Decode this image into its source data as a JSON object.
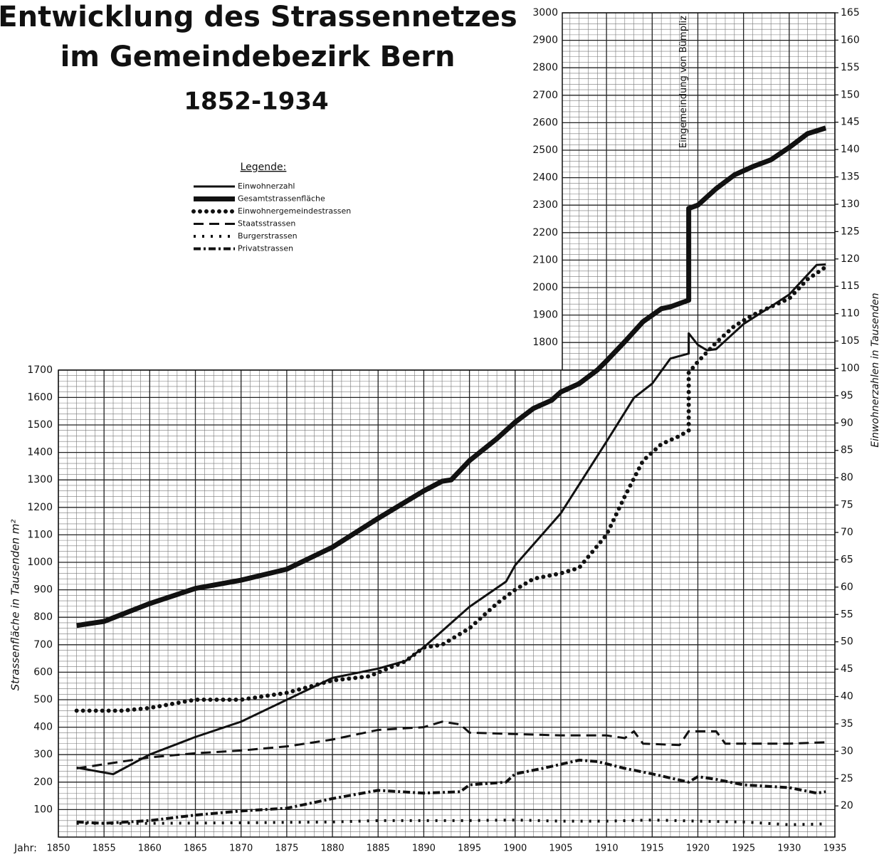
{
  "chart_data": {
    "type": "line",
    "title": [
      "Entwicklung des Strassennetzes",
      "im Gemeindebezirk Bern",
      "1852-1934"
    ],
    "legend_title": "Legende:",
    "x_label": "Jahr:",
    "y_label": "Strassenfläche in Tausenden m²",
    "y2_label": "Einwohnerzahlen in Tausenden",
    "annotation": "Eingemeindung von Bümpliz",
    "annotation_x": 1919,
    "xlim": [
      1850,
      1935
    ],
    "xticks": [
      1850,
      1855,
      1860,
      1865,
      1870,
      1875,
      1880,
      1885,
      1890,
      1895,
      1900,
      1905,
      1910,
      1915,
      1920,
      1925,
      1930,
      1935
    ],
    "ylim": [
      0,
      3000
    ],
    "yticks": [
      100,
      200,
      300,
      400,
      500,
      600,
      700,
      800,
      900,
      1000,
      1100,
      1200,
      1300,
      1400,
      1500,
      1600,
      1700,
      1800,
      1900,
      2000,
      2100,
      2200,
      2300,
      2400,
      2500,
      2600,
      2700,
      2800,
      2900,
      3000
    ],
    "y2lim": [
      14.3,
      165
    ],
    "y2ticks": [
      20,
      25,
      30,
      35,
      40,
      45,
      50,
      55,
      60,
      65,
      70,
      75,
      80,
      85,
      90,
      95,
      100,
      105,
      110,
      115,
      120,
      125,
      130,
      135,
      140,
      145,
      150,
      155,
      160,
      165
    ],
    "grid": true,
    "series": [
      {
        "name": "Einwohnerzahl",
        "style": "solid",
        "color": "#111",
        "axis": "y2",
        "x": [
          1852,
          1856,
          1860,
          1865,
          1870,
          1875,
          1880,
          1885,
          1888,
          1890,
          1895,
          1899,
          1900,
          1905,
          1910,
          1913,
          1915,
          1917,
          1919,
          1919,
          1920,
          1921,
          1922,
          1925,
          1928,
          1930,
          1933,
          1934
        ],
        "values": [
          27,
          25.8,
          29.4,
          32.6,
          35.4,
          39.4,
          43.4,
          45.1,
          46.5,
          49,
          56.4,
          61,
          64,
          73.5,
          86.6,
          94.6,
          97.2,
          101.8,
          102.7,
          106.4,
          104.3,
          103.3,
          103.5,
          108.1,
          111.3,
          113.5,
          118.9,
          119
        ]
      },
      {
        "name": "Gesamtstrassenfläche",
        "style": "thick",
        "color": "#111",
        "x": [
          1852,
          1855,
          1860,
          1865,
          1870,
          1875,
          1880,
          1885,
          1890,
          1892,
          1893,
          1895,
          1898,
          1900,
          1902,
          1904,
          1905,
          1907,
          1909,
          1910,
          1912,
          1914,
          1916,
          1917,
          1919,
          1919,
          1920,
          1922,
          1924,
          1926,
          1928,
          1930,
          1932,
          1934
        ],
        "values": [
          770,
          785,
          850,
          905,
          935,
          975,
          1055,
          1160,
          1260,
          1295,
          1300,
          1370,
          1450,
          1510,
          1560,
          1590,
          1620,
          1650,
          1700,
          1733,
          1803,
          1876,
          1923,
          1930,
          1954,
          2288,
          2300,
          2360,
          2410,
          2440,
          2465,
          2510,
          2560,
          2581
        ]
      },
      {
        "name": "Einwohnergemeindestrassen",
        "style": "dotted",
        "color": "#111",
        "x": [
          1852,
          1857,
          1860,
          1865,
          1870,
          1875,
          1880,
          1884,
          1888,
          1890,
          1892,
          1895,
          1898,
          1900,
          1902,
          1905,
          1907,
          1910,
          1912,
          1914,
          1916,
          1918,
          1919,
          1919,
          1920,
          1922,
          1924,
          1926,
          1928,
          1930,
          1932,
          1934
        ],
        "values": [
          460,
          460,
          470,
          500,
          500,
          525,
          570,
          585,
          640,
          690,
          700,
          760,
          850,
          900,
          940,
          960,
          980,
          1100,
          1240,
          1370,
          1430,
          1460,
          1480,
          1690,
          1730,
          1800,
          1860,
          1900,
          1930,
          1960,
          2030,
          2075
        ]
      },
      {
        "name": "Staatsstrassen",
        "style": "dashed",
        "color": "#111",
        "x": [
          1852,
          1855,
          1860,
          1865,
          1870,
          1875,
          1880,
          1885,
          1890,
          1892,
          1894,
          1895,
          1900,
          1905,
          1910,
          1912,
          1913,
          1914,
          1918,
          1919,
          1922,
          1923,
          1930,
          1934
        ],
        "values": [
          250,
          265,
          290,
          305,
          315,
          330,
          355,
          390,
          400,
          420,
          410,
          380,
          375,
          370,
          370,
          360,
          385,
          340,
          335,
          385,
          385,
          340,
          340,
          345
        ]
      },
      {
        "name": "Burgerstrassen",
        "style": "cross",
        "color": "#111",
        "x": [
          1852,
          1860,
          1870,
          1880,
          1885,
          1890,
          1895,
          1900,
          1905,
          1910,
          1915,
          1920,
          1925,
          1930,
          1934
        ],
        "values": [
          50,
          50,
          52,
          55,
          60,
          60,
          60,
          62,
          58,
          58,
          62,
          58,
          55,
          45,
          48
        ]
      },
      {
        "name": "Privatstrassen",
        "style": "dotdash",
        "color": "#111",
        "x": [
          1852,
          1855,
          1860,
          1865,
          1870,
          1875,
          1880,
          1885,
          1890,
          1894,
          1895,
          1899,
          1900,
          1903,
          1905,
          1907,
          1909,
          1912,
          1915,
          1919,
          1920,
          1922,
          1925,
          1930,
          1933,
          1934
        ],
        "values": [
          55,
          50,
          60,
          80,
          95,
          105,
          140,
          170,
          160,
          165,
          190,
          200,
          230,
          250,
          265,
          280,
          275,
          250,
          230,
          200,
          220,
          210,
          190,
          180,
          160,
          165
        ]
      }
    ]
  }
}
